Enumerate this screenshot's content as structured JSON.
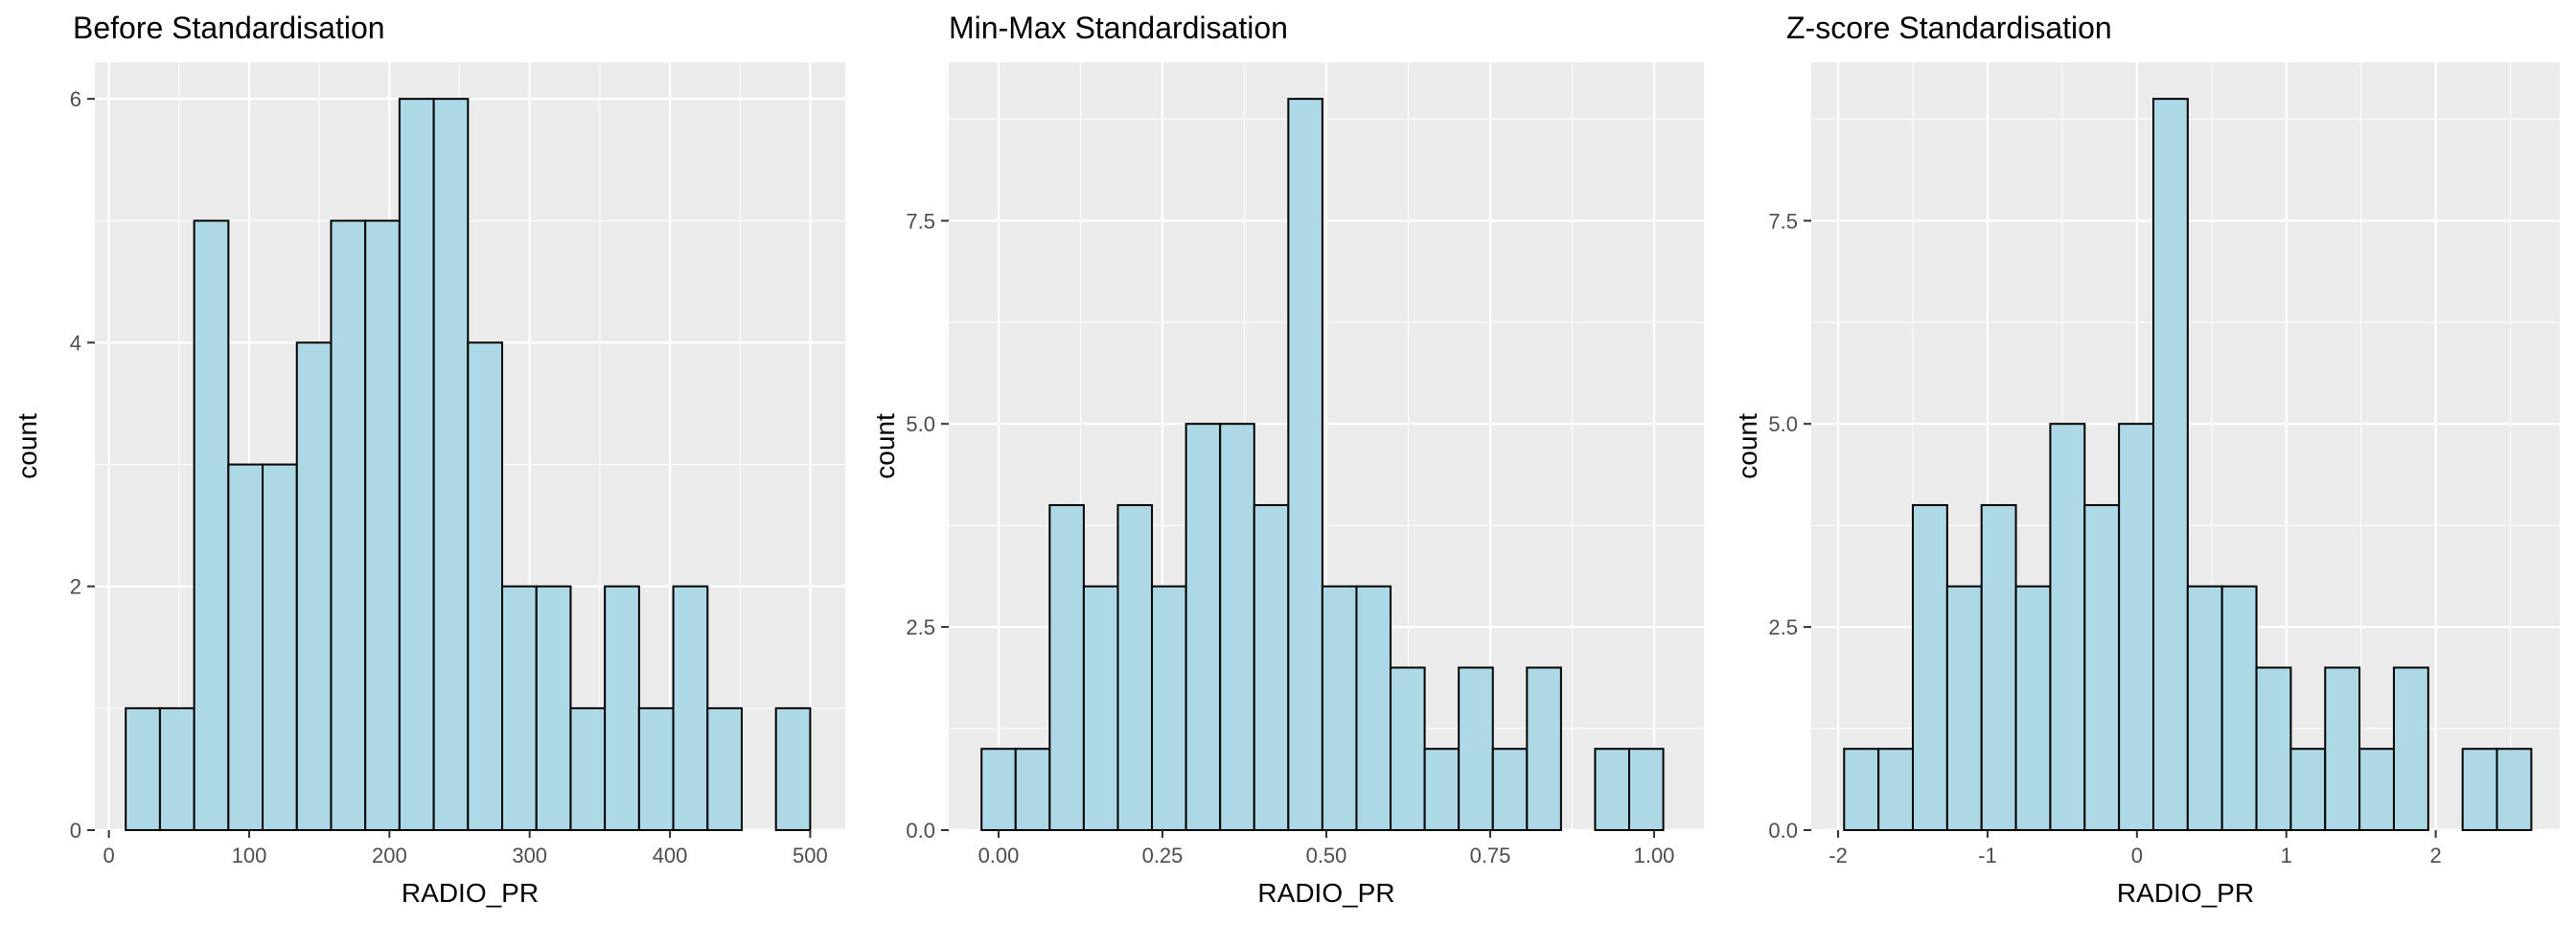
{
  "chart_data": [
    {
      "type": "histogram",
      "title": "Before Standardisation",
      "xlabel": "RADIO_PR",
      "ylabel": "count",
      "xlim": [
        -10,
        525
      ],
      "ylim": [
        0,
        6.3
      ],
      "bar_color": "#ADD8E6",
      "outline_color": "#000000",
      "background": "#EBEBEB",
      "grid": true,
      "x_ticks": [
        0,
        100,
        200,
        300,
        400,
        500
      ],
      "x_tick_labels": [
        "0",
        "100",
        "200",
        "300",
        "400",
        "500"
      ],
      "y_ticks": [
        0,
        2,
        4,
        6
      ],
      "y_tick_labels": [
        "0",
        "2",
        "4",
        "6"
      ],
      "bin_edges": [
        12,
        36.4,
        60.8,
        85.2,
        109.6,
        134,
        158.4,
        182.8,
        207.2,
        231.6,
        256,
        280.4,
        304.8,
        329.2,
        353.6,
        378,
        402.4,
        426.8,
        451.2,
        475.6,
        500
      ],
      "counts": [
        1,
        1,
        5,
        3,
        3,
        4,
        5,
        5,
        6,
        6,
        4,
        2,
        2,
        1,
        2,
        1,
        2,
        1,
        0,
        1
      ]
    },
    {
      "type": "histogram",
      "title": "Min-Max Standardisation",
      "xlabel": "RADIO_PR",
      "ylabel": "count",
      "xlim": [
        -0.076,
        1.076
      ],
      "ylim": [
        0,
        9.45
      ],
      "bar_color": "#ADD8E6",
      "outline_color": "#000000",
      "background": "#EBEBEB",
      "grid": true,
      "x_ticks": [
        0,
        0.25,
        0.5,
        0.75,
        1.0
      ],
      "x_tick_labels": [
        "0.00",
        "0.25",
        "0.50",
        "0.75",
        "1.00"
      ],
      "y_ticks": [
        0,
        2.5,
        5,
        7.5
      ],
      "y_tick_labels": [
        "0.0",
        "2.5",
        "5.0",
        "7.5"
      ],
      "bin_edges": [
        -0.026,
        0.026,
        0.078,
        0.13,
        0.182,
        0.234,
        0.286,
        0.338,
        0.39,
        0.442,
        0.494,
        0.546,
        0.598,
        0.65,
        0.702,
        0.754,
        0.806,
        0.858,
        0.91,
        0.962,
        1.014
      ],
      "counts": [
        1,
        1,
        4,
        3,
        4,
        3,
        5,
        5,
        4,
        9,
        3,
        3,
        2,
        1,
        2,
        1,
        2,
        0,
        1,
        1
      ]
    },
    {
      "type": "histogram",
      "title": "Z-score Standardisation",
      "xlabel": "RADIO_PR",
      "ylabel": "count",
      "xlim": [
        -2.18,
        2.83
      ],
      "ylim": [
        0,
        9.45
      ],
      "bar_color": "#ADD8E6",
      "outline_color": "#000000",
      "background": "#EBEBEB",
      "grid": true,
      "x_ticks": [
        -2,
        -1,
        0,
        1,
        2
      ],
      "x_tick_labels": [
        "-2",
        "-1",
        "0",
        "1",
        "2"
      ],
      "y_ticks": [
        0,
        2.5,
        5,
        7.5
      ],
      "y_tick_labels": [
        "0.0",
        "2.5",
        "5.0",
        "7.5"
      ],
      "bin_edges": [
        -1.96,
        -1.73,
        -1.5,
        -1.27,
        -1.04,
        -0.81,
        -0.58,
        -0.35,
        -0.12,
        0.11,
        0.34,
        0.57,
        0.8,
        1.03,
        1.26,
        1.49,
        1.72,
        1.95,
        2.18,
        2.41,
        2.64
      ],
      "counts": [
        1,
        1,
        4,
        3,
        4,
        3,
        5,
        4,
        5,
        9,
        3,
        3,
        2,
        1,
        2,
        1,
        2,
        0,
        1,
        1
      ]
    }
  ]
}
